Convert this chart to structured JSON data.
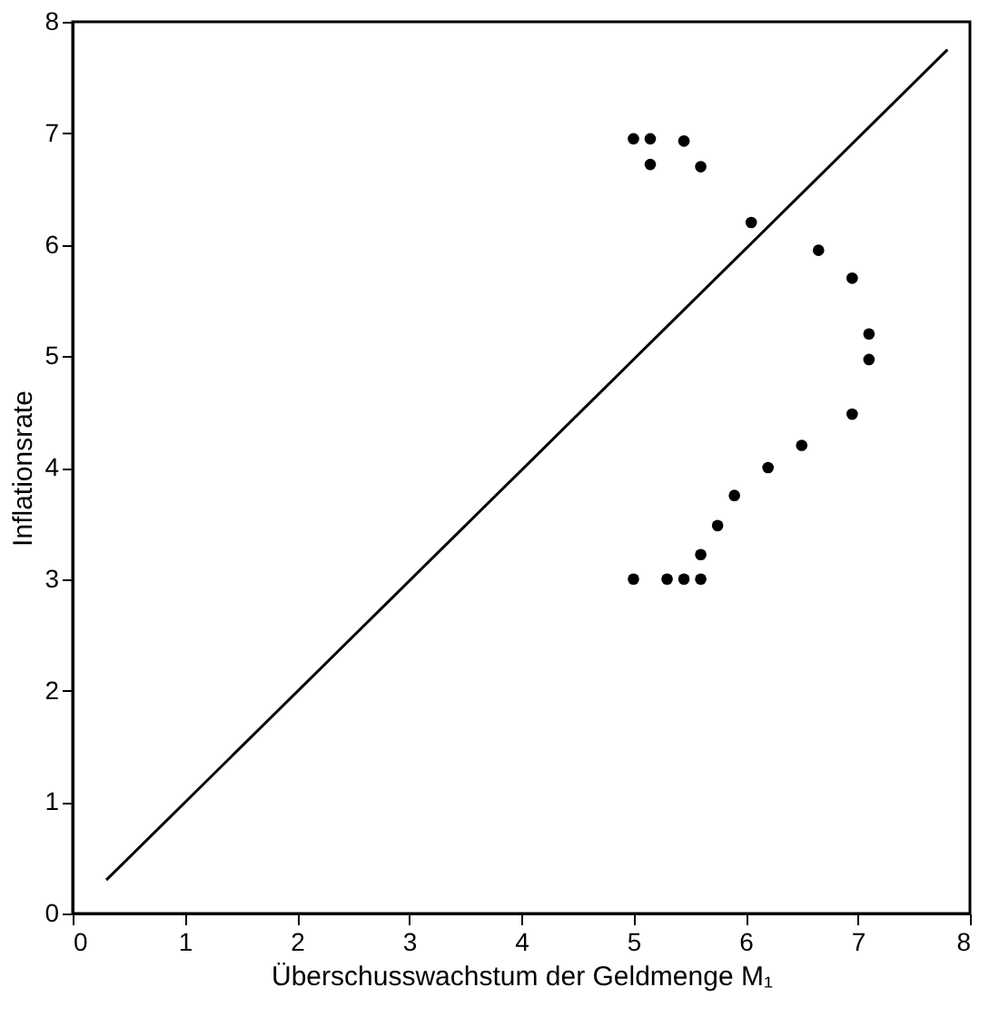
{
  "chart_data": {
    "type": "scatter",
    "xlabel": "Überschusswachstum der Geldmenge M₁",
    "ylabel": "Inflationsrate",
    "xlim": [
      0,
      8
    ],
    "ylim": [
      0,
      8
    ],
    "xticks": [
      0,
      1,
      2,
      3,
      4,
      5,
      6,
      7,
      8
    ],
    "yticks": [
      0,
      1,
      2,
      3,
      4,
      5,
      6,
      7,
      8
    ],
    "grid": false,
    "series": [
      {
        "color": "#000000",
        "marker": "circle",
        "x": [
          5.0,
          5.15,
          5.45,
          5.15,
          5.6,
          6.05,
          6.65,
          6.95,
          7.1,
          7.1,
          6.95,
          6.5,
          6.2,
          5.9,
          5.75,
          5.6,
          5.6,
          5.45,
          5.3,
          5.0
        ],
        "values": [
          6.95,
          6.95,
          6.93,
          6.72,
          6.7,
          6.2,
          5.95,
          5.7,
          5.2,
          4.97,
          4.48,
          4.2,
          4.0,
          3.75,
          3.48,
          3.22,
          3.0,
          3.0,
          3.0,
          3.0
        ]
      },
      {
        "type": "line",
        "color": "#000000",
        "line_style": "solid",
        "marker": "none",
        "x": [
          0.3,
          7.8
        ],
        "values": [
          0.3,
          7.75
        ]
      }
    ]
  }
}
